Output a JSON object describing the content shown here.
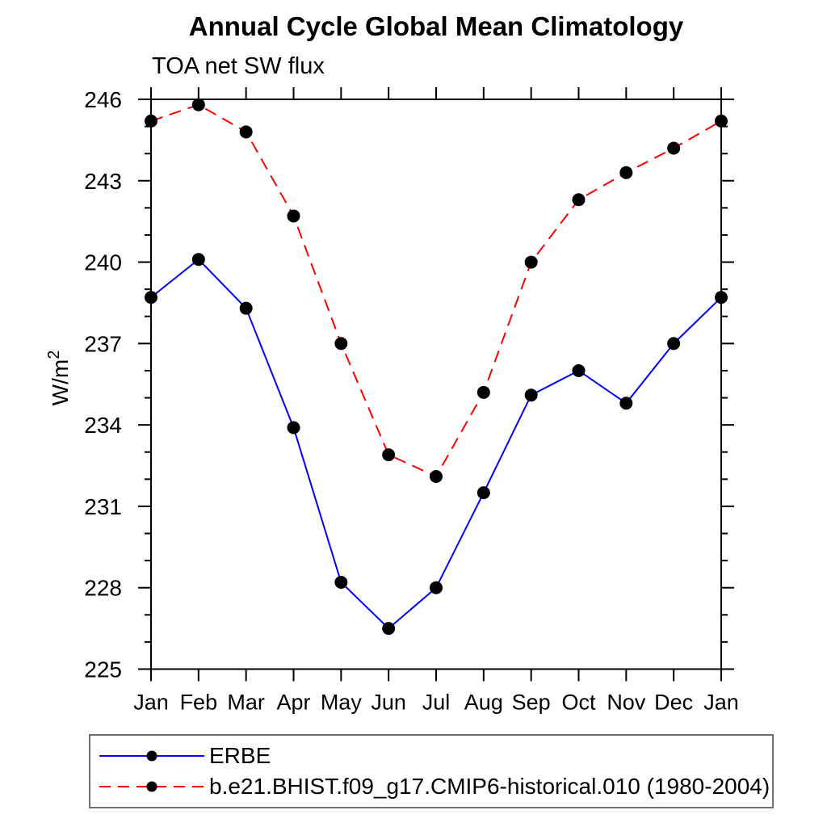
{
  "chart_data": {
    "type": "line",
    "title": "Annual Cycle Global Mean Climatology",
    "subtitle": "TOA net SW flux",
    "ylabel": "W/m²",
    "xlabel": "",
    "ylim": [
      225,
      246
    ],
    "yticks": [
      225,
      228,
      231,
      234,
      237,
      240,
      243,
      246
    ],
    "ytick_minor_step": 1,
    "grid": false,
    "legend_position": "bottom-left-box",
    "categories": [
      "Jan",
      "Feb",
      "Mar",
      "Apr",
      "May",
      "Jun",
      "Jul",
      "Aug",
      "Sep",
      "Oct",
      "Nov",
      "Dec",
      "Jan"
    ],
    "series": [
      {
        "name": "ERBE",
        "color": "#0000ff",
        "line_style": "solid",
        "marker": "filled-circle",
        "marker_color": "#000000",
        "values": [
          238.7,
          240.1,
          238.3,
          233.9,
          228.2,
          226.5,
          228.0,
          231.5,
          235.1,
          236.0,
          234.8,
          237.0,
          238.7
        ]
      },
      {
        "name": "b.e21.BHIST.f09_g17.CMIP6-historical.010 (1980-2004)",
        "color": "#ff0000",
        "line_style": "dashed",
        "marker": "filled-circle",
        "marker_color": "#000000",
        "values": [
          245.2,
          245.8,
          244.8,
          241.7,
          237.0,
          232.9,
          232.1,
          235.2,
          240.0,
          242.3,
          243.3,
          244.2,
          245.2
        ]
      }
    ]
  },
  "ylabel_parts": {
    "base": "W/m",
    "sup": "2"
  }
}
